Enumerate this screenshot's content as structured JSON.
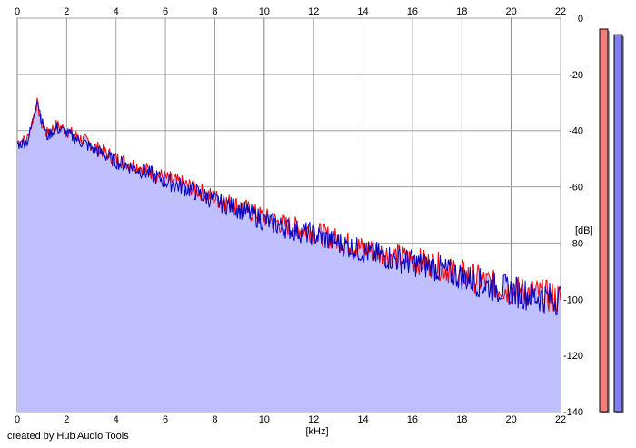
{
  "credit": "created by Hub Audio Tools",
  "colors": {
    "background": "#ffffff",
    "plot_area": "#ffffff",
    "grid": "#a0a0a0",
    "grid_major": "#808080",
    "fill": "#c0c0ff",
    "left_channel": "#ff0000",
    "right_channel": "#0000c0",
    "left_meter": "#f08080",
    "right_meter": "#8080f0"
  },
  "chart_data": {
    "type": "line",
    "title": "",
    "xlabel": "[kHz]",
    "ylabel": "[dB]",
    "xlim": [
      0,
      22
    ],
    "ylim": [
      -140,
      0
    ],
    "x_ticks": [
      "0",
      "2",
      "4",
      "6",
      "8",
      "10",
      "12",
      "14",
      "16",
      "18",
      "20",
      "22"
    ],
    "y_ticks": [
      "0",
      "-20",
      "-40",
      "-60",
      "-80",
      "-100",
      "-120",
      "-140"
    ],
    "grid": true,
    "x": [
      0,
      0.4,
      0.6,
      0.8,
      1.0,
      1.2,
      1.6,
      2,
      3,
      4,
      5,
      6,
      7,
      8,
      9,
      10,
      11,
      12,
      13,
      14,
      15,
      16,
      17,
      18,
      19,
      20,
      21,
      22
    ],
    "series": [
      {
        "values": [
          -44,
          -43,
          -37,
          -30,
          -38,
          -41,
          -38,
          -40,
          -45,
          -50,
          -53,
          -57,
          -60,
          -64,
          -67,
          -71,
          -74,
          -76,
          -79,
          -82,
          -84,
          -86,
          -88,
          -91,
          -94,
          -97,
          -98,
          -100
        ]
      },
      {
        "values": [
          -45,
          -44,
          -38,
          -28,
          -37,
          -42,
          -39,
          -41,
          -46,
          -51,
          -54,
          -58,
          -61,
          -65,
          -68,
          -72,
          -75,
          -77,
          -80,
          -83,
          -85,
          -87,
          -89,
          -92,
          -95,
          -97,
          -99,
          -100
        ]
      }
    ],
    "level_meters": [
      {
        "level_db": 0
      },
      {
        "level_db": -2
      }
    ]
  }
}
